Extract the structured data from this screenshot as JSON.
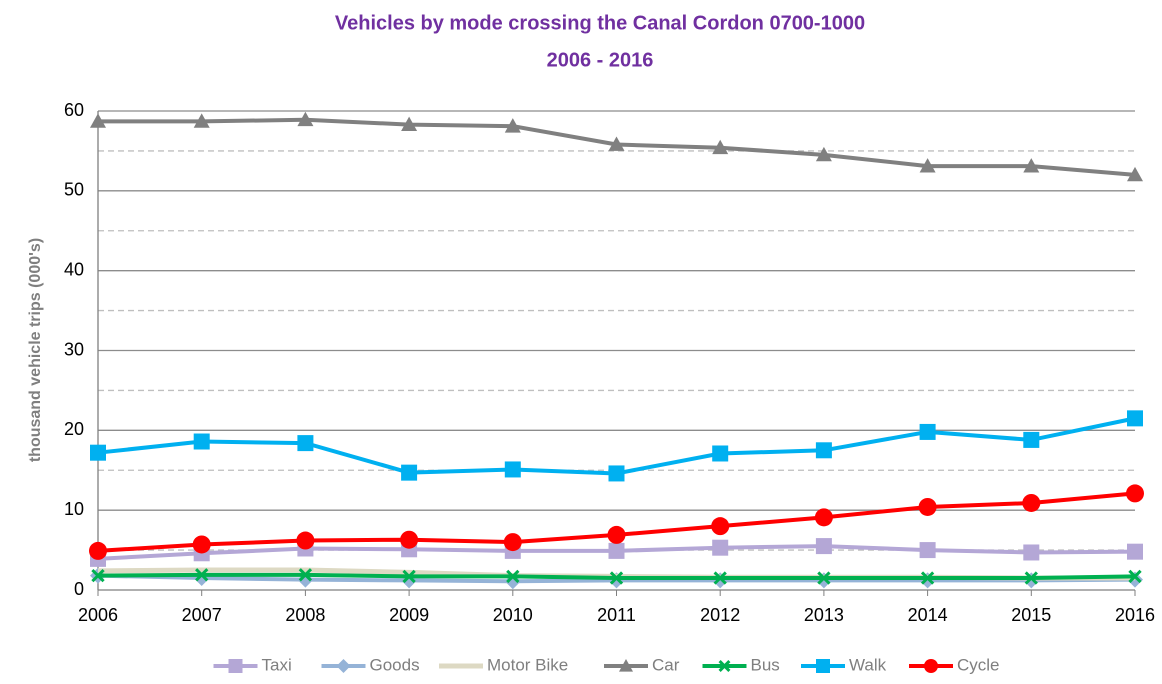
{
  "chart_data": {
    "type": "line",
    "title": "Vehicles by mode crossing the Canal Cordon 0700-1000",
    "subtitle": "2006 - 2016",
    "y_label": "thousand vehicle trips (000's)",
    "x": [
      2006,
      2007,
      2008,
      2009,
      2010,
      2011,
      2012,
      2013,
      2014,
      2015,
      2016
    ],
    "xlim": [
      2006,
      2016
    ],
    "xticks": [
      2006,
      2007,
      2008,
      2009,
      2010,
      2011,
      2012,
      2013,
      2014,
      2015,
      2016
    ],
    "ylim": [
      0,
      60
    ],
    "yticks": [
      0,
      10,
      20,
      30,
      40,
      50,
      60
    ],
    "minor_grid": [
      5,
      15,
      25,
      35,
      45,
      55
    ],
    "grid": true,
    "legend": "bottom",
    "series": [
      {
        "name": "Taxi",
        "color": "#b4a7d6",
        "marker": "square",
        "values": [
          3.9,
          4.6,
          5.2,
          5.1,
          4.9,
          4.9,
          5.3,
          5.5,
          5.0,
          4.7,
          4.8
        ]
      },
      {
        "name": "Goods",
        "color": "#95b3d7",
        "marker": "diamond",
        "values": [
          1.8,
          1.5,
          1.3,
          1.2,
          1.1,
          1.2,
          1.2,
          1.2,
          1.2,
          1.2,
          1.3
        ]
      },
      {
        "name": "Motor Bike",
        "color": "#ddd9c3",
        "marker": "none",
        "values": [
          2.4,
          2.5,
          2.5,
          2.2,
          1.8,
          1.7,
          1.6,
          1.6,
          1.6,
          1.5,
          1.5
        ]
      },
      {
        "name": "Car",
        "color": "#808080",
        "marker": "triangle",
        "values": [
          58.7,
          58.7,
          58.9,
          58.3,
          58.1,
          55.8,
          55.4,
          54.5,
          53.1,
          53.1,
          52.0
        ]
      },
      {
        "name": "Bus",
        "color": "#00b050",
        "marker": "x",
        "values": [
          1.8,
          1.9,
          1.9,
          1.7,
          1.7,
          1.5,
          1.5,
          1.5,
          1.5,
          1.5,
          1.7
        ]
      },
      {
        "name": "Walk",
        "color": "#00b0f0",
        "marker": "square",
        "values": [
          17.2,
          18.6,
          18.4,
          14.7,
          15.1,
          14.6,
          17.1,
          17.5,
          19.8,
          18.8,
          21.5
        ]
      },
      {
        "name": "Cycle",
        "color": "#ff0000",
        "marker": "circle",
        "values": [
          4.9,
          5.7,
          6.2,
          6.3,
          6.0,
          6.9,
          8.0,
          9.1,
          10.4,
          10.9,
          12.1
        ]
      }
    ]
  }
}
